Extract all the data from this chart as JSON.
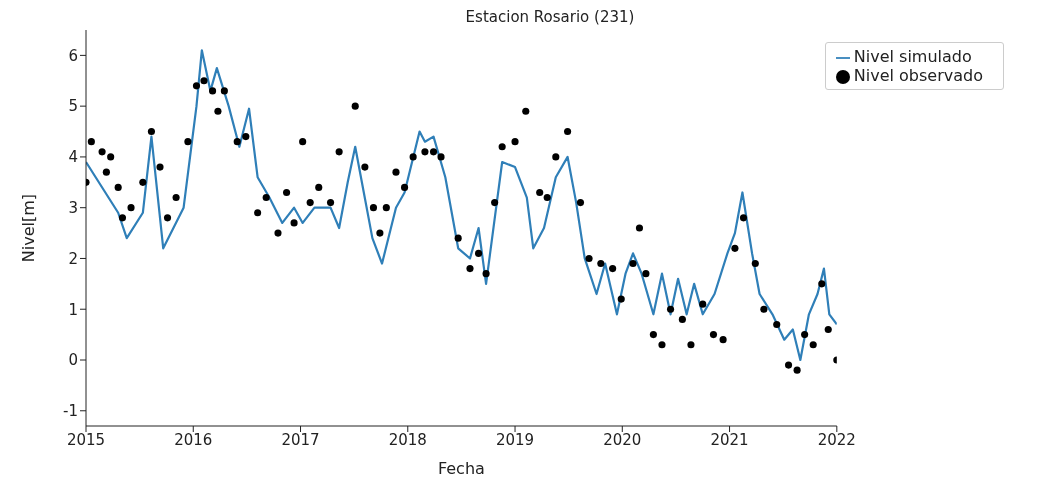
{
  "chart_data": {
    "type": "line",
    "title": "Estacion Rosario (231)",
    "xlabel": "Fecha",
    "ylabel": "Nivel[m]",
    "xlim": [
      2015,
      2022
    ],
    "xticks": [
      2015,
      2016,
      2017,
      2018,
      2019,
      2020,
      2021,
      2022
    ],
    "ylim": [
      -1.3,
      6.5
    ],
    "yticks": [
      -1,
      0,
      1,
      2,
      3,
      4,
      5,
      6
    ],
    "legend": "top right",
    "grid": false,
    "series": [
      {
        "name": "Nivel simulado",
        "color": "#2f7fb8",
        "line_style": "solid",
        "marker": "none",
        "x": [
          2015.0,
          2015.3,
          2015.38,
          2015.53,
          2015.61,
          2015.72,
          2015.91,
          2016.03,
          2016.08,
          2016.16,
          2016.22,
          2016.33,
          2016.43,
          2016.52,
          2016.6,
          2016.71,
          2016.83,
          2016.94,
          2017.02,
          2017.13,
          2017.28,
          2017.36,
          2017.44,
          2017.51,
          2017.59,
          2017.67,
          2017.76,
          2017.89,
          2017.97,
          2018.11,
          2018.16,
          2018.24,
          2018.35,
          2018.47,
          2018.58,
          2018.66,
          2018.73,
          2018.88,
          2019.0,
          2019.11,
          2019.17,
          2019.27,
          2019.38,
          2019.49,
          2019.57,
          2019.65,
          2019.76,
          2019.84,
          2019.95,
          2020.03,
          2020.1,
          2020.18,
          2020.29,
          2020.37,
          2020.45,
          2020.52,
          2020.6,
          2020.67,
          2020.75,
          2020.86,
          2020.98,
          2021.05,
          2021.12,
          2021.21,
          2021.28,
          2021.4,
          2021.51,
          2021.59,
          2021.66,
          2021.74,
          2021.82,
          2021.88,
          2021.93,
          2022.0
        ],
        "values": [
          3.9,
          2.9,
          2.4,
          2.9,
          4.4,
          2.2,
          3.0,
          5.0,
          6.1,
          5.3,
          5.75,
          5.0,
          4.2,
          4.95,
          3.6,
          3.2,
          2.7,
          3.0,
          2.7,
          3.0,
          3.0,
          2.6,
          3.5,
          4.2,
          3.3,
          2.4,
          1.9,
          3.0,
          3.3,
          4.5,
          4.3,
          4.4,
          3.6,
          2.2,
          2.0,
          2.6,
          1.5,
          3.9,
          3.8,
          3.2,
          2.2,
          2.6,
          3.6,
          4.0,
          3.1,
          2.0,
          1.3,
          1.9,
          0.9,
          1.7,
          2.1,
          1.7,
          0.9,
          1.7,
          0.9,
          1.6,
          0.9,
          1.5,
          0.9,
          1.3,
          2.1,
          2.5,
          3.3,
          2.1,
          1.3,
          0.9,
          0.4,
          0.6,
          0.0,
          0.9,
          1.3,
          1.8,
          0.9,
          0.7
        ]
      },
      {
        "name": "Nivel observado",
        "type": "scatter",
        "color": "#000000",
        "marker": "circle",
        "x": [
          2015.0,
          2015.05,
          2015.15,
          2015.19,
          2015.23,
          2015.3,
          2015.34,
          2015.42,
          2015.53,
          2015.61,
          2015.69,
          2015.76,
          2015.84,
          2015.95,
          2016.03,
          2016.1,
          2016.18,
          2016.23,
          2016.29,
          2016.41,
          2016.49,
          2016.6,
          2016.68,
          2016.79,
          2016.87,
          2016.94,
          2017.02,
          2017.09,
          2017.17,
          2017.28,
          2017.36,
          2017.51,
          2017.6,
          2017.68,
          2017.74,
          2017.8,
          2017.89,
          2017.97,
          2018.05,
          2018.16,
          2018.24,
          2018.31,
          2018.47,
          2018.58,
          2018.66,
          2018.73,
          2018.81,
          2018.88,
          2019.0,
          2019.1,
          2019.23,
          2019.3,
          2019.38,
          2019.49,
          2019.61,
          2019.69,
          2019.8,
          2019.91,
          2019.99,
          2020.1,
          2020.16,
          2020.22,
          2020.29,
          2020.37,
          2020.45,
          2020.56,
          2020.64,
          2020.75,
          2020.85,
          2020.94,
          2021.05,
          2021.13,
          2021.24,
          2021.32,
          2021.44,
          2021.55,
          2021.63,
          2021.7,
          2021.78,
          2021.86,
          2021.92,
          2022.0
        ],
        "values": [
          3.5,
          4.3,
          4.1,
          3.7,
          4.0,
          3.4,
          2.8,
          3.0,
          3.5,
          4.5,
          3.8,
          2.8,
          3.2,
          4.3,
          5.4,
          5.5,
          5.3,
          4.9,
          5.3,
          4.3,
          4.4,
          2.9,
          3.2,
          2.5,
          3.3,
          2.7,
          4.3,
          3.1,
          3.4,
          3.1,
          4.1,
          5.0,
          3.8,
          3.0,
          2.5,
          3.0,
          3.7,
          3.4,
          4.0,
          4.1,
          4.1,
          4.0,
          2.4,
          1.8,
          2.1,
          1.7,
          3.1,
          4.2,
          4.3,
          4.9,
          3.3,
          3.2,
          4.0,
          4.5,
          3.1,
          2.0,
          1.9,
          1.8,
          1.2,
          1.9,
          2.6,
          1.7,
          0.5,
          0.3,
          1.0,
          0.8,
          0.3,
          1.1,
          0.5,
          0.4,
          2.2,
          2.8,
          1.9,
          1.0,
          0.7,
          -0.1,
          -0.2,
          0.5,
          0.3,
          1.5,
          0.6,
          0.0
        ]
      }
    ]
  }
}
